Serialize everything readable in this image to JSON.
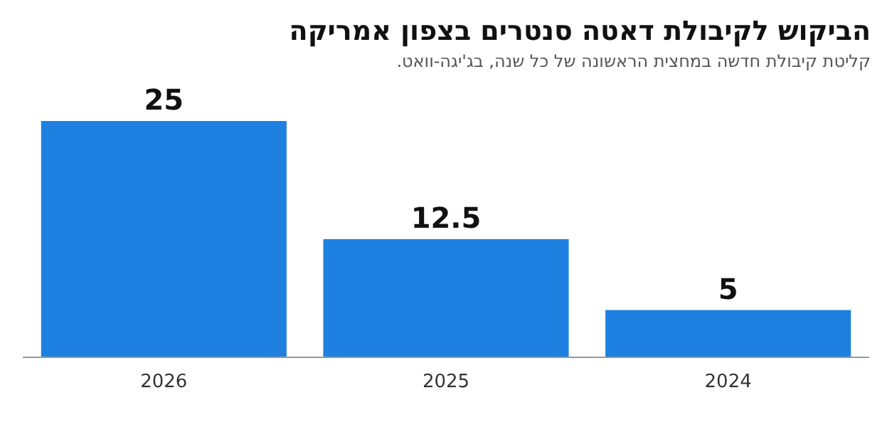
{
  "chart_data": {
    "type": "bar",
    "title": "הביקוש לקיבולת דאטה סנטרים בצפון אמריקה",
    "subtitle": "קליטת קיבולת חדשה במחצית הראשונה של כל שנה, בג'יגה-וואט.",
    "categories": [
      "2026",
      "2025",
      "2024"
    ],
    "values": [
      25,
      12.5,
      5
    ],
    "color": "#1e80e0",
    "data_labels": true
  }
}
